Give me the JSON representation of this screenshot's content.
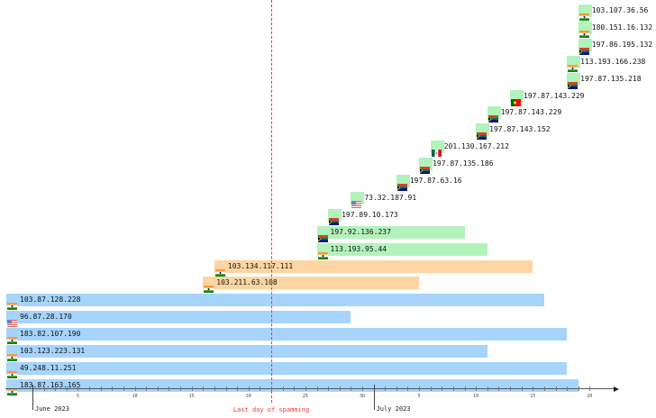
{
  "chart_data": {
    "type": "gantt-bar",
    "title": "",
    "x_axis": {
      "unit": "day",
      "start": "2023-05-29",
      "end": "2023-07-22",
      "month_labels": [
        {
          "label": "June 2023",
          "date": "2023-06-01"
        },
        {
          "label": "July 2023",
          "date": "2023-07-01"
        }
      ],
      "tick_labels": [
        {
          "label": "5",
          "date": "2023-06-05"
        },
        {
          "label": "10",
          "date": "2023-06-10"
        },
        {
          "label": "15",
          "date": "2023-06-15"
        },
        {
          "label": "20",
          "date": "2023-06-20"
        },
        {
          "label": "25",
          "date": "2023-06-25"
        },
        {
          "label": "30",
          "date": "2023-06-30"
        },
        {
          "label": "5",
          "date": "2023-07-05"
        },
        {
          "label": "10",
          "date": "2023-07-10"
        },
        {
          "label": "15",
          "date": "2023-07-15"
        },
        {
          "label": "20",
          "date": "2023-07-20"
        }
      ]
    },
    "marker": {
      "label": "Last day of spamming",
      "date": "2023-06-22",
      "color": "#e53b3b"
    },
    "groups": {
      "blue": "#a6d4fb",
      "orange": "#fdd5a3",
      "green": "#b2f2bb"
    },
    "series": [
      {
        "ip": "103.107.36.56",
        "country": "IN",
        "group": "green",
        "start": "2023-07-19",
        "end": "2023-07-19"
      },
      {
        "ip": "180.151.16.132",
        "country": "IN",
        "group": "green",
        "start": "2023-07-19",
        "end": "2023-07-19"
      },
      {
        "ip": "197.86.195.132",
        "country": "ZA",
        "group": "green",
        "start": "2023-07-19",
        "end": "2023-07-19"
      },
      {
        "ip": "113.193.166.238",
        "country": "IN",
        "group": "green",
        "start": "2023-07-18",
        "end": "2023-07-18"
      },
      {
        "ip": "197.87.135.218",
        "country": "ZA",
        "group": "green",
        "start": "2023-07-18",
        "end": "2023-07-18"
      },
      {
        "ip": "197.87.143.229",
        "country": "PT",
        "group": "green",
        "start": "2023-07-13",
        "end": "2023-07-13"
      },
      {
        "ip": "197.87.143.229",
        "country": "ZA",
        "group": "green",
        "start": "2023-07-11",
        "end": "2023-07-11"
      },
      {
        "ip": "197.87.143.152",
        "country": "ZA",
        "group": "green",
        "start": "2023-07-10",
        "end": "2023-07-10"
      },
      {
        "ip": "201.130.167.212",
        "country": "MX",
        "group": "green",
        "start": "2023-07-06",
        "end": "2023-07-07"
      },
      {
        "ip": "197.87.135.186",
        "country": "ZA",
        "group": "green",
        "start": "2023-07-05",
        "end": "2023-07-05"
      },
      {
        "ip": "197.87.63.16",
        "country": "ZA",
        "group": "green",
        "start": "2023-07-03",
        "end": "2023-07-04"
      },
      {
        "ip": "73.32.187.91",
        "country": "US",
        "group": "green",
        "start": "2023-06-29",
        "end": "2023-06-29"
      },
      {
        "ip": "197.89.10.173",
        "country": "ZA",
        "group": "green",
        "start": "2023-06-27",
        "end": "2023-06-27"
      },
      {
        "ip": "197.92.136.237",
        "country": "ZA",
        "group": "green",
        "start": "2023-06-26",
        "end": "2023-07-09"
      },
      {
        "ip": "113.193.95.44",
        "country": "IN",
        "group": "green",
        "start": "2023-06-26",
        "end": "2023-07-11"
      },
      {
        "ip": "103.134.117.111",
        "country": "IN",
        "group": "orange",
        "start": "2023-06-17",
        "end": "2023-07-15"
      },
      {
        "ip": "103.211.63.108",
        "country": "IN",
        "group": "orange",
        "start": "2023-06-16",
        "end": "2023-07-05"
      },
      {
        "ip": "103.87.128.228",
        "country": "IN",
        "group": "blue",
        "start": "2023-05-29",
        "end": "2023-07-16"
      },
      {
        "ip": "96.87.28.170",
        "country": "US",
        "group": "blue",
        "start": "2023-05-29",
        "end": "2023-06-29"
      },
      {
        "ip": "183.82.107.190",
        "country": "IN",
        "group": "blue",
        "start": "2023-05-29",
        "end": "2023-07-18"
      },
      {
        "ip": "103.123.223.131",
        "country": "IN",
        "group": "blue",
        "start": "2023-05-29",
        "end": "2023-07-11"
      },
      {
        "ip": "49.248.11.251",
        "country": "IN",
        "group": "blue",
        "start": "2023-05-29",
        "end": "2023-07-18"
      },
      {
        "ip": "183.87.163.165",
        "country": "IN",
        "group": "blue",
        "start": "2023-05-29",
        "end": "2023-07-19"
      }
    ]
  }
}
